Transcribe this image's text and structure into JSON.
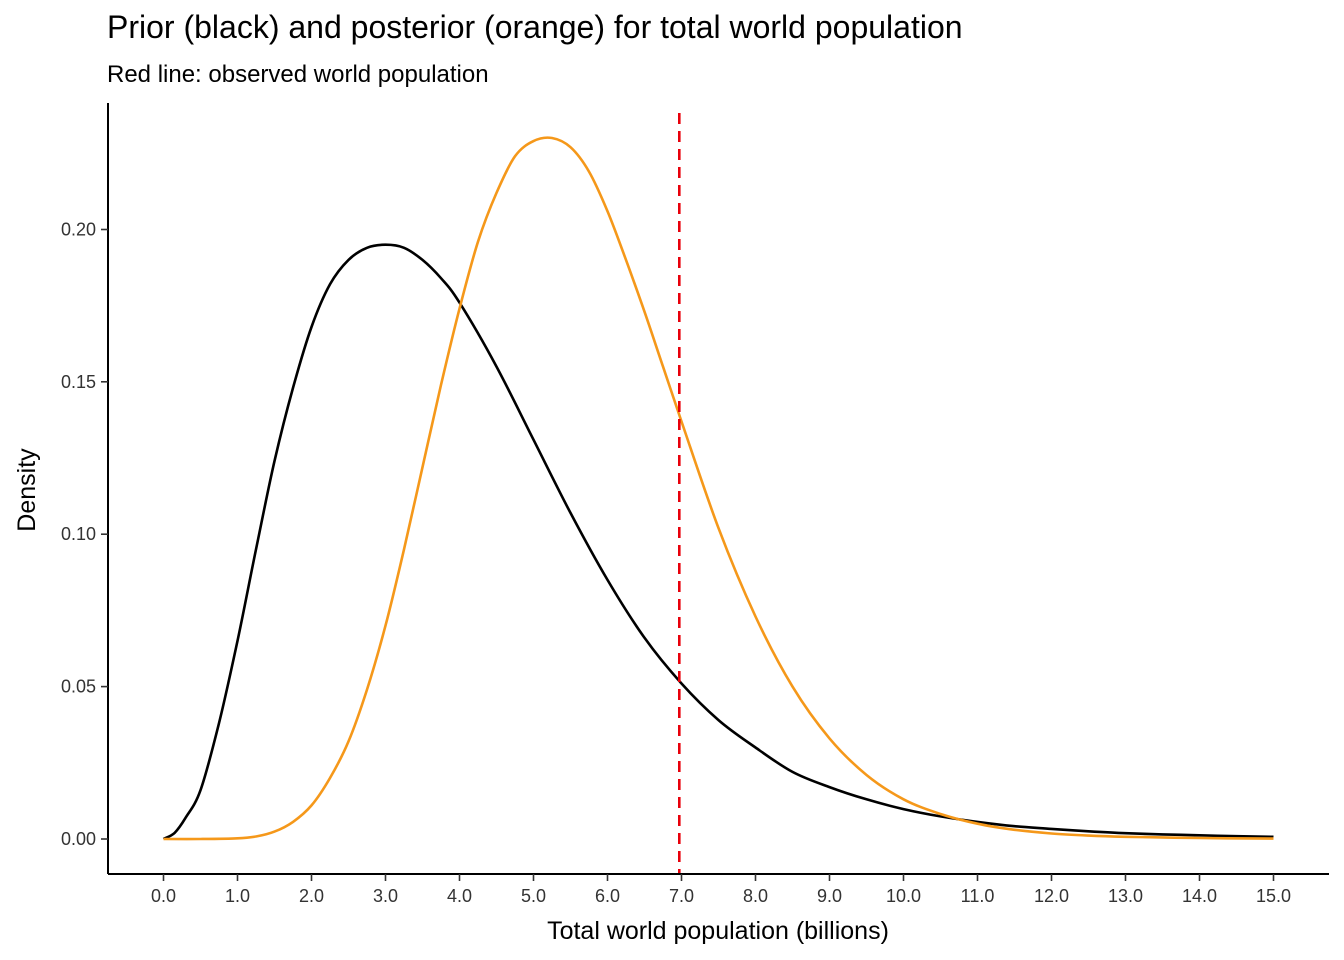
{
  "chart_data": {
    "type": "line",
    "title": "Prior (black) and posterior (orange) for total world population",
    "subtitle": "Red line: observed world population",
    "xlabel": "Total world population (billions)",
    "ylabel": "Density",
    "xlim": [
      -0.75,
      15.75
    ],
    "ylim": [
      -0.0115,
      0.2415
    ],
    "x_ticks": [
      0,
      1,
      2,
      3,
      4,
      5,
      6,
      7,
      8,
      9,
      10,
      11,
      12,
      13,
      14,
      15
    ],
    "x_tick_labels": [
      "0.0",
      "1.0",
      "2.0",
      "3.0",
      "4.0",
      "5.0",
      "6.0",
      "7.0",
      "8.0",
      "9.0",
      "10.0",
      "11.0",
      "12.0",
      "13.0",
      "14.0",
      "15.0"
    ],
    "y_ticks": [
      0,
      0.05,
      0.1,
      0.15,
      0.2
    ],
    "y_tick_labels": [
      "0.00",
      "0.05",
      "0.10",
      "0.15",
      "0.20"
    ],
    "grid": false,
    "legend": "none",
    "series": [
      {
        "color": "#000000",
        "x": [
          0,
          0.15,
          0.3,
          0.5,
          0.75,
          1,
          1.25,
          1.5,
          1.75,
          2,
          2.25,
          2.5,
          2.75,
          3,
          3.25,
          3.5,
          3.75,
          4,
          4.5,
          5,
          5.5,
          6,
          6.5,
          7,
          7.5,
          8,
          8.5,
          9,
          9.5,
          10,
          10.5,
          11,
          11.5,
          12,
          12.5,
          13,
          13.5,
          14,
          14.5,
          15
        ],
        "y": [
          0,
          0.002,
          0.007,
          0.016,
          0.038,
          0.065,
          0.095,
          0.124,
          0.148,
          0.168,
          0.182,
          0.19,
          0.194,
          0.195,
          0.194,
          0.19,
          0.184,
          0.176,
          0.155,
          0.131,
          0.107,
          0.085,
          0.066,
          0.051,
          0.039,
          0.03,
          0.022,
          0.017,
          0.013,
          0.0098,
          0.0074,
          0.0056,
          0.0042,
          0.0033,
          0.0025,
          0.0019,
          0.0015,
          0.0012,
          0.0009,
          0.0007
        ]
      },
      {
        "color": "#F5981A",
        "x": [
          0,
          0.5,
          1,
          1.25,
          1.5,
          1.75,
          2,
          2.25,
          2.5,
          2.75,
          3,
          3.25,
          3.5,
          3.75,
          4,
          4.25,
          4.5,
          4.75,
          5,
          5.25,
          5.5,
          5.75,
          6,
          6.25,
          6.5,
          6.75,
          7,
          7.5,
          8,
          8.5,
          9,
          9.5,
          10,
          10.5,
          11,
          11.5,
          12,
          12.5,
          13,
          14,
          15
        ],
        "y": [
          0,
          0,
          0.0002,
          0.0008,
          0.0024,
          0.0056,
          0.011,
          0.02,
          0.032,
          0.049,
          0.07,
          0.095,
          0.122,
          0.149,
          0.174,
          0.196,
          0.212,
          0.224,
          0.229,
          0.23,
          0.227,
          0.219,
          0.206,
          0.19,
          0.173,
          0.155,
          0.137,
          0.102,
          0.073,
          0.05,
          0.033,
          0.021,
          0.013,
          0.0082,
          0.005,
          0.003,
          0.0018,
          0.0011,
          0.0007,
          0.0003,
          0.0001
        ]
      }
    ],
    "reference_lines": [
      {
        "orientation": "vertical",
        "x": 6.97,
        "color": "#E8000B",
        "style": "dashed"
      }
    ]
  }
}
